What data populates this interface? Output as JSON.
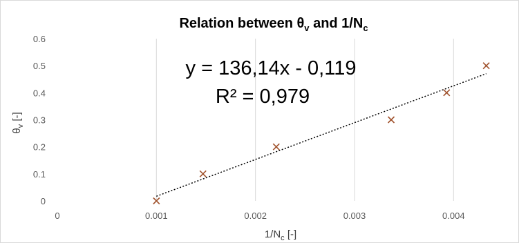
{
  "chart_data": {
    "type": "scatter",
    "title": {
      "prefix": "Relation between θ",
      "prefix_sub": "v",
      "middle": " and 1/N",
      "middle_sub": "c"
    },
    "xlabel": {
      "main": "1/N",
      "sub": "c",
      "suffix": " [-]"
    },
    "ylabel": {
      "main": "θ",
      "sub": "v",
      "suffix": " [-]"
    },
    "xlim": [
      0,
      0.0045
    ],
    "ylim": [
      0,
      0.6
    ],
    "x_ticks": [
      0,
      0.001,
      0.002,
      0.003,
      0.004
    ],
    "x_tick_labels": [
      "0",
      "0.001",
      "0.002",
      "0.003",
      "0.004"
    ],
    "y_ticks": [
      0,
      0.1,
      0.2,
      0.3,
      0.4,
      0.5,
      0.6
    ],
    "y_tick_labels": [
      "0",
      "0.1",
      "0.2",
      "0.3",
      "0.4",
      "0.5",
      "0.6"
    ],
    "grid": "vertical",
    "series": [
      {
        "marker": "x",
        "color": "#a0522d",
        "points": [
          {
            "x": 0.001,
            "y": 0.0
          },
          {
            "x": 0.00147,
            "y": 0.1
          },
          {
            "x": 0.00221,
            "y": 0.2
          },
          {
            "x": 0.00337,
            "y": 0.3
          },
          {
            "x": 0.00393,
            "y": 0.4
          },
          {
            "x": 0.00433,
            "y": 0.5
          }
        ]
      }
    ],
    "trendline": {
      "type": "linear",
      "slope": 136.14,
      "intercept": -0.119,
      "x_range": [
        0.001,
        0.00433
      ],
      "style": "dotted",
      "color": "#000000",
      "equation_text": "y = 136,14x - 0,119",
      "r2_text": "R² = 0,979"
    }
  }
}
